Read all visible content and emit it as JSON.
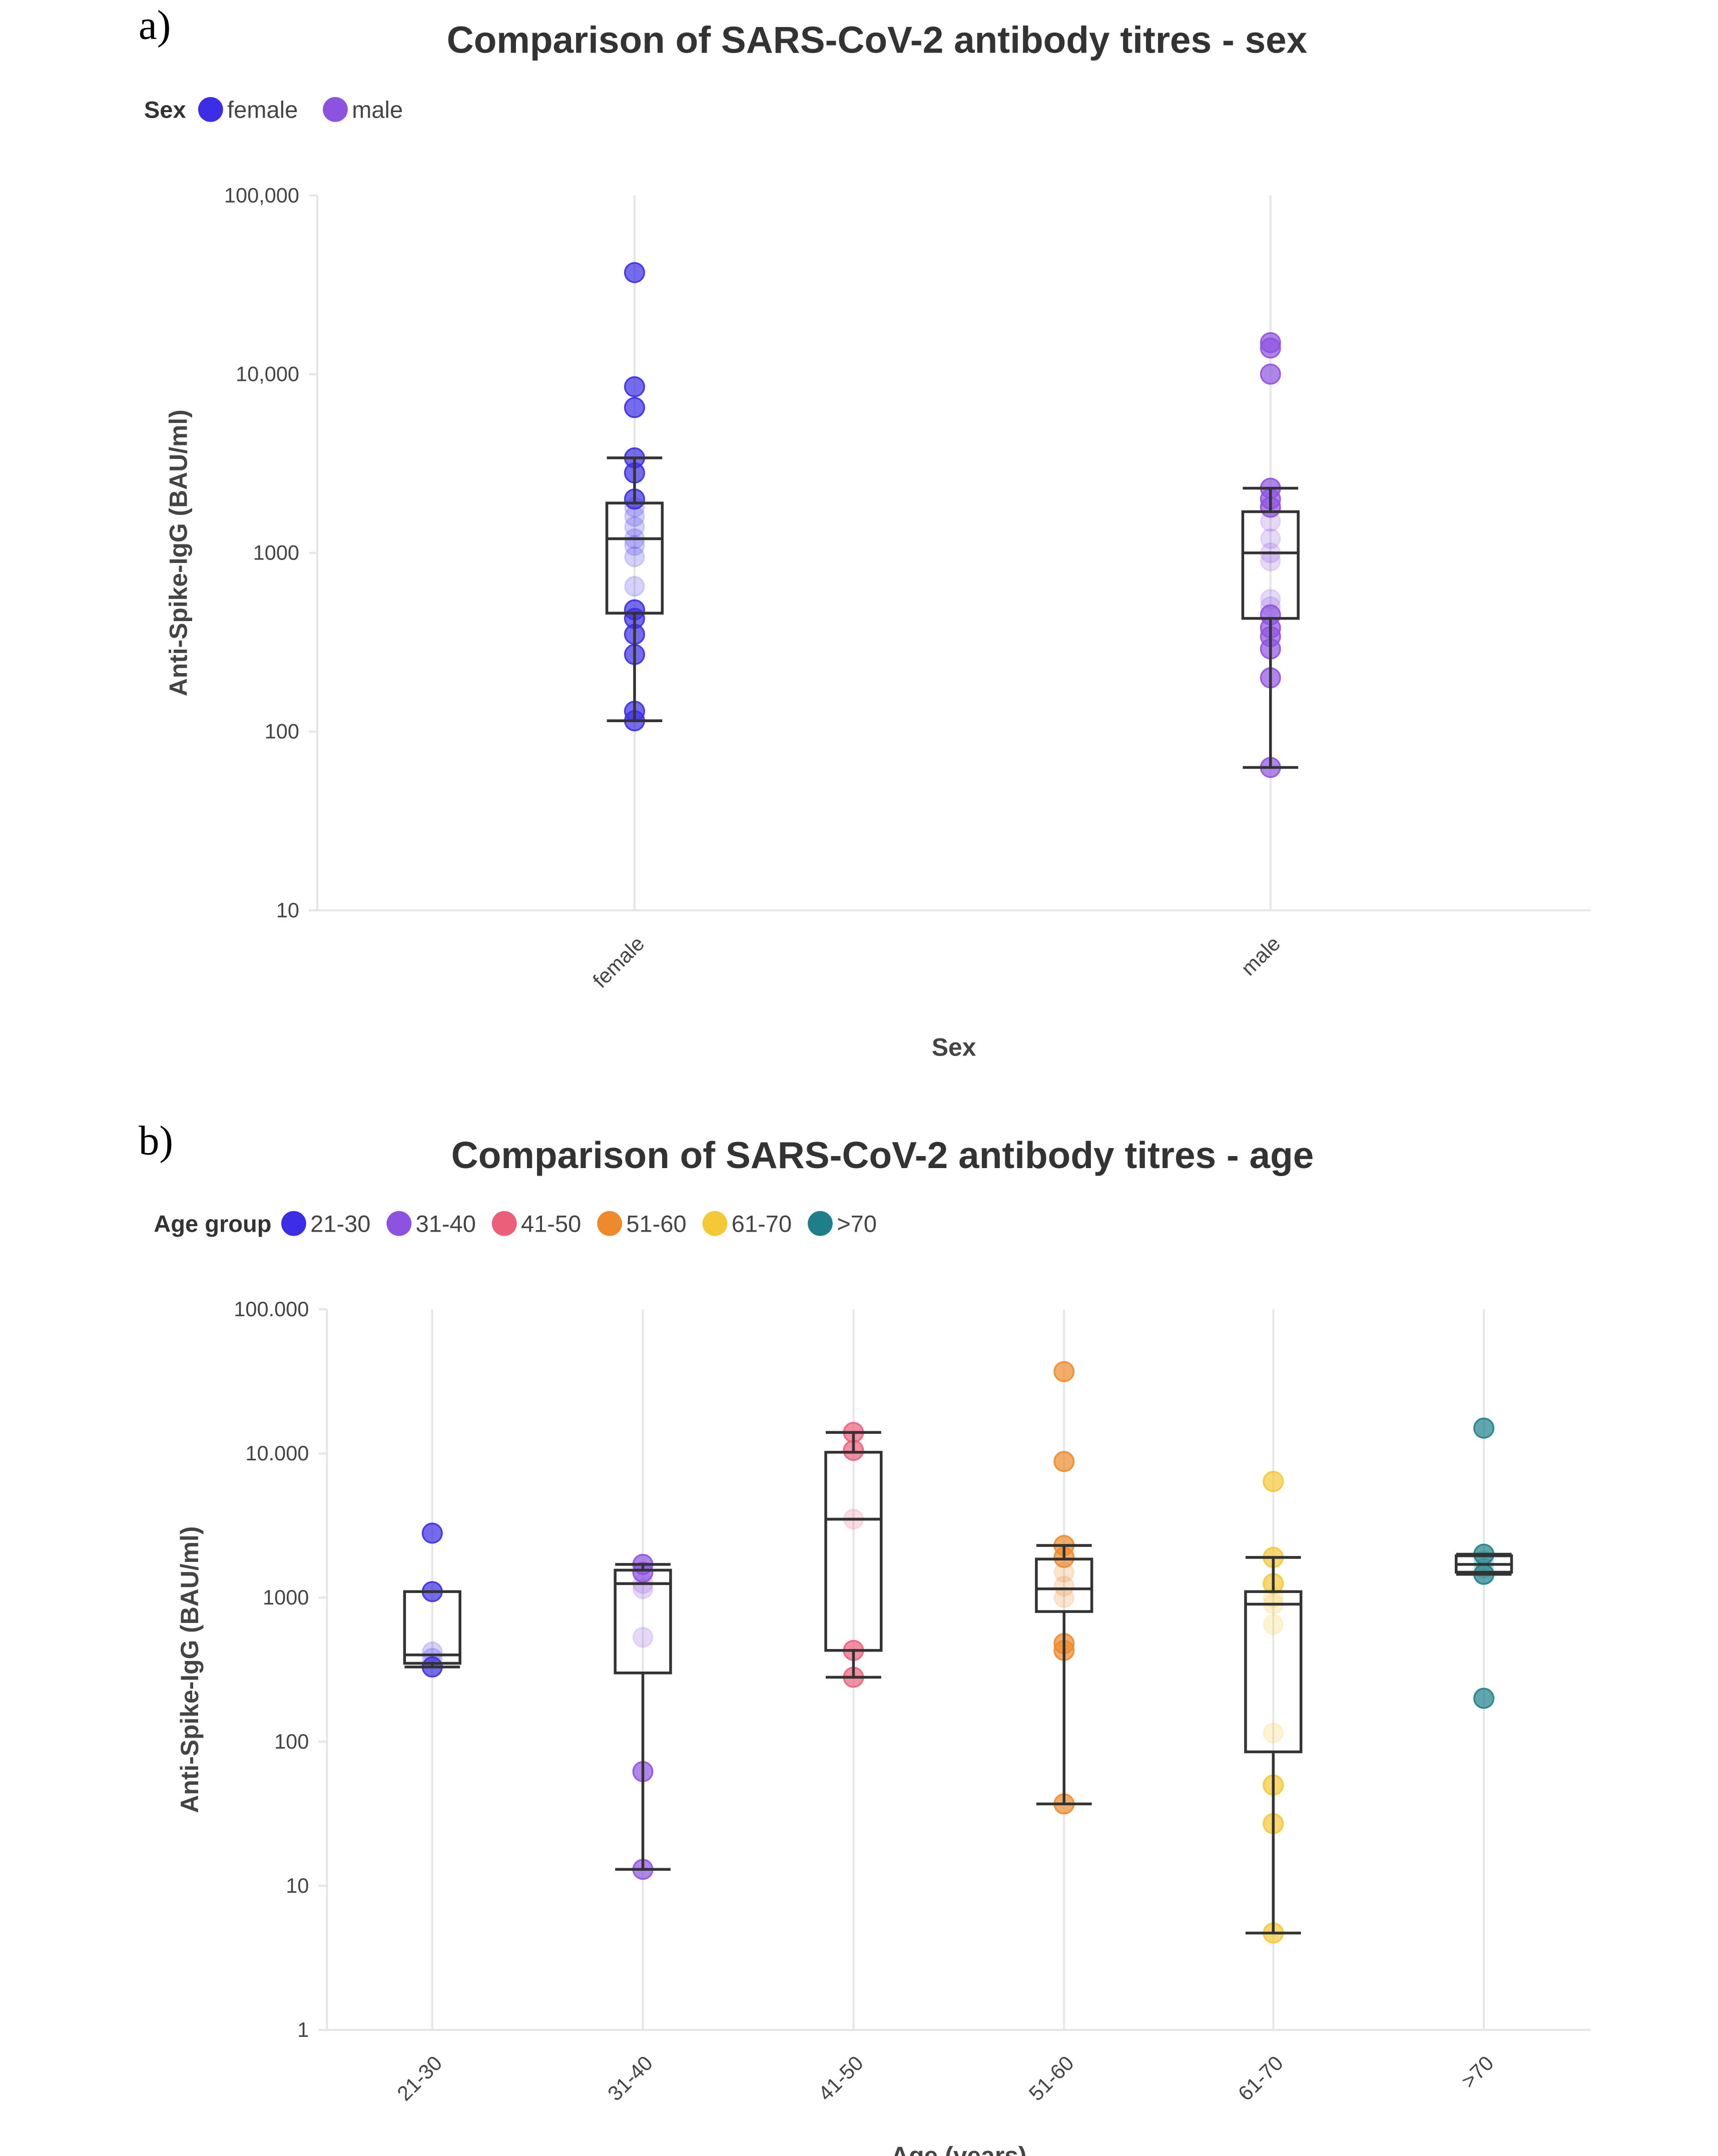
{
  "chart_data": [
    {
      "panel_label": "a)",
      "type": "box",
      "title": "Comparison of SARS-CoV-2 antibody titres - sex",
      "legend_title": "Sex",
      "legend_placement": "top-left",
      "xlabel": "Sex",
      "ylabel": "Anti-Spike-IgG (BAU/ml)",
      "yscale": "log",
      "ylim": [
        10,
        100000
      ],
      "yticks": [
        10,
        100,
        1000,
        10000,
        100000
      ],
      "ytick_labels": [
        "10",
        "100",
        "1000",
        "10,000",
        "100,000"
      ],
      "grid": true,
      "categories": [
        "female",
        "male"
      ],
      "series": [
        {
          "name": "female",
          "color": "#3b2ee6",
          "points": [
            37000,
            8500,
            6500,
            3400,
            2800,
            2000,
            1800,
            1600,
            1400,
            1200,
            1100,
            950,
            650,
            480,
            430,
            350,
            270,
            130,
            115
          ],
          "box": {
            "min": 115,
            "q1": 460,
            "median": 1200,
            "q3": 1900,
            "max": 3400
          }
        },
        {
          "name": "male",
          "color": "#8e52e0",
          "points": [
            15000,
            14000,
            10000,
            2300,
            2000,
            1800,
            1500,
            1200,
            1000,
            900,
            550,
            500,
            450,
            380,
            340,
            290,
            200,
            63
          ],
          "box": {
            "min": 63,
            "q1": 430,
            "median": 1000,
            "q3": 1700,
            "max": 2300
          }
        }
      ]
    },
    {
      "panel_label": "b)",
      "type": "box",
      "title": "Comparison of SARS-CoV-2 antibody titres - age",
      "legend_title": "Age group",
      "legend_placement": "top-left",
      "xlabel": "Age (years)",
      "ylabel": "Anti-Spike-IgG (BAU/ml)",
      "yscale": "log",
      "ylim": [
        1,
        100000
      ],
      "yticks": [
        1,
        10,
        100,
        1000,
        10000,
        100000
      ],
      "ytick_labels": [
        "1",
        "10",
        "100",
        "1000",
        "10.000",
        "100.000"
      ],
      "grid": true,
      "categories": [
        "21-30",
        "31-40",
        "41-50",
        "51-60",
        "61-70",
        ">70"
      ],
      "series": [
        {
          "name": "21-30",
          "color": "#3b2ee6",
          "points": [
            2800,
            1100,
            420,
            380,
            330
          ],
          "box": {
            "min": 330,
            "q1": 350,
            "median": 400,
            "q3": 1100,
            "max": 1100
          }
        },
        {
          "name": "31-40",
          "color": "#8e52e0",
          "points": [
            1700,
            1500,
            1250,
            1150,
            530,
            62,
            13
          ],
          "box": {
            "min": 13,
            "q1": 300,
            "median": 1250,
            "q3": 1550,
            "max": 1700
          }
        },
        {
          "name": "41-50",
          "color": "#ec5f7a",
          "points": [
            14000,
            10500,
            3500,
            430,
            280
          ],
          "box": {
            "min": 280,
            "q1": 430,
            "median": 3500,
            "q3": 10200,
            "max": 14000
          }
        },
        {
          "name": "51-60",
          "color": "#ee8a2c",
          "points": [
            37000,
            8800,
            2300,
            1900,
            1500,
            1200,
            1000,
            480,
            430,
            37
          ],
          "box": {
            "min": 37,
            "q1": 800,
            "median": 1150,
            "q3": 1850,
            "max": 2300
          }
        },
        {
          "name": "61-70",
          "color": "#f5c836",
          "points": [
            6400,
            1900,
            1250,
            1000,
            900,
            650,
            115,
            50,
            27,
            4.7
          ],
          "box": {
            "min": 4.7,
            "q1": 85,
            "median": 900,
            "q3": 1100,
            "max": 1900
          }
        },
        {
          "name": ">70",
          "color": "#1e7f8a",
          "points": [
            15000,
            2000,
            1800,
            1600,
            1450,
            200
          ],
          "box": {
            "min": 1450,
            "q1": 1500,
            "median": 1700,
            "q3": 1950,
            "max": 2000
          }
        }
      ]
    }
  ]
}
